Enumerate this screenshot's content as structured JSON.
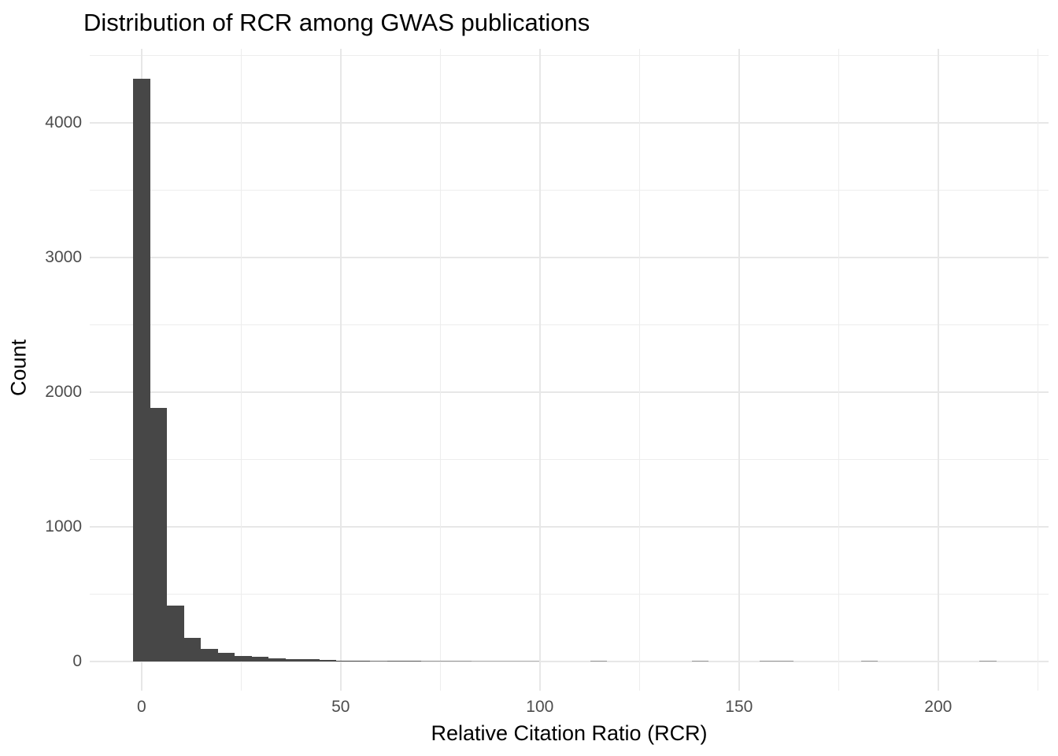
{
  "title": "Distribution of RCR among GWAS publications",
  "x_axis_title": "Relative Citation Ratio (RCR)",
  "y_axis_title": "Count",
  "chart_data": {
    "type": "bar",
    "subtype": "histogram",
    "title": "Distribution of RCR among GWAS publications",
    "xlabel": "Relative Citation Ratio (RCR)",
    "ylabel": "Count",
    "legend_position": "none",
    "grid": true,
    "bin_width": 4.25,
    "xlim": [
      -13.0,
      227.7
    ],
    "ylim": [
      -217,
      4550
    ],
    "x_ticks_major": [
      0,
      50,
      100,
      150,
      200
    ],
    "x_ticks_minor": [
      25,
      75,
      125,
      175,
      225
    ],
    "y_ticks_major": [
      0,
      1000,
      2000,
      3000,
      4000
    ],
    "y_ticks_minor": [
      500,
      1500,
      2500,
      3500,
      4500
    ],
    "bins": [
      {
        "x": 0,
        "n": 4330
      },
      {
        "x": 4.25,
        "n": 1880
      },
      {
        "x": 8.5,
        "n": 415
      },
      {
        "x": 12.75,
        "n": 175
      },
      {
        "x": 17,
        "n": 92
      },
      {
        "x": 21.25,
        "n": 63
      },
      {
        "x": 25.5,
        "n": 39
      },
      {
        "x": 29.75,
        "n": 33
      },
      {
        "x": 34,
        "n": 25
      },
      {
        "x": 38.25,
        "n": 17
      },
      {
        "x": 42.5,
        "n": 15
      },
      {
        "x": 46.75,
        "n": 9
      },
      {
        "x": 51,
        "n": 6
      },
      {
        "x": 55.25,
        "n": 6
      },
      {
        "x": 59.5,
        "n": 4
      },
      {
        "x": 63.75,
        "n": 5
      },
      {
        "x": 68,
        "n": 5
      },
      {
        "x": 72.25,
        "n": 3
      },
      {
        "x": 76.5,
        "n": 3
      },
      {
        "x": 80.75,
        "n": 3
      },
      {
        "x": 85,
        "n": 2
      },
      {
        "x": 89.25,
        "n": 2
      },
      {
        "x": 93.5,
        "n": 2
      },
      {
        "x": 97.75,
        "n": 2
      },
      {
        "x": 114.75,
        "n": 3
      },
      {
        "x": 140.25,
        "n": 3
      },
      {
        "x": 157.25,
        "n": 3
      },
      {
        "x": 161.5,
        "n": 3
      },
      {
        "x": 182.75,
        "n": 3
      },
      {
        "x": 212.5,
        "n": 3
      }
    ],
    "colors": {
      "bar": "#474747",
      "grid_major": "#e7e7e7",
      "grid_minor": "#ededed",
      "tick_label": "#4d4d4d",
      "text": "#000000",
      "background": "#ffffff"
    }
  }
}
